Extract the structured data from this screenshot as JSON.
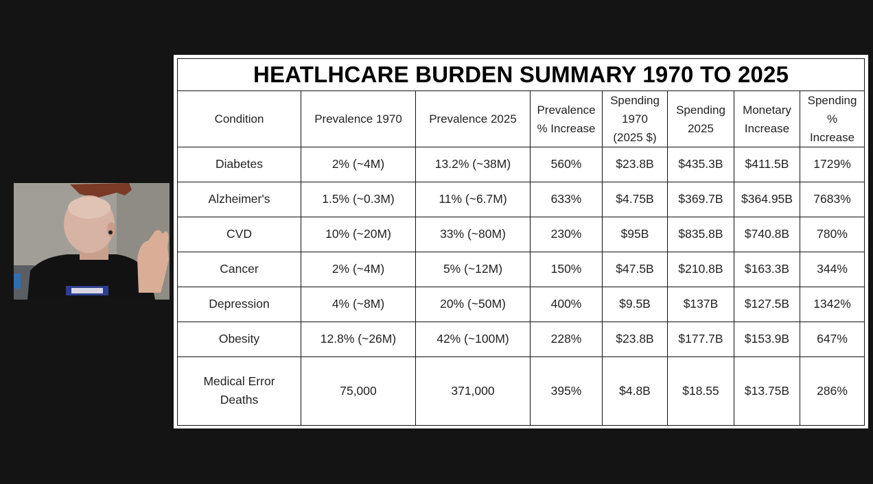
{
  "table": {
    "title": "HEATLHCARE BURDEN SUMMARY 1970 TO 2025",
    "headers": [
      [
        "Condition"
      ],
      [
        "Prevalence 1970"
      ],
      [
        "Prevalence 2025"
      ],
      [
        "Prevalence",
        "% Increase"
      ],
      [
        "Spending",
        "1970",
        "(2025 $)"
      ],
      [
        "Spending",
        "2025"
      ],
      [
        "Monetary",
        "Increase"
      ],
      [
        "Spending",
        "%",
        "Increase"
      ]
    ],
    "rows": [
      [
        [
          "Diabetes"
        ],
        [
          "2% (~4M)"
        ],
        [
          "13.2% (~38M)"
        ],
        [
          "560%"
        ],
        [
          "$23.8B"
        ],
        [
          "$435.3B"
        ],
        [
          "$411.5B"
        ],
        [
          "1729%"
        ]
      ],
      [
        [
          "Alzheimer's"
        ],
        [
          "1.5% (~0.3M)"
        ],
        [
          "11% (~6.7M)"
        ],
        [
          "633%"
        ],
        [
          "$4.75B"
        ],
        [
          "$369.7B"
        ],
        [
          "$364.95B"
        ],
        [
          "7683%"
        ]
      ],
      [
        [
          "CVD"
        ],
        [
          "10% (~20M)"
        ],
        [
          "33% (~80M)"
        ],
        [
          "230%"
        ],
        [
          "$95B"
        ],
        [
          "$835.8B"
        ],
        [
          "$740.8B"
        ],
        [
          "780%"
        ]
      ],
      [
        [
          "Cancer"
        ],
        [
          "2% (~4M)"
        ],
        [
          "5% (~12M)"
        ],
        [
          "150%"
        ],
        [
          "$47.5B"
        ],
        [
          "$210.8B"
        ],
        [
          "$163.3B"
        ],
        [
          "344%"
        ]
      ],
      [
        [
          "Depression"
        ],
        [
          "4% (~8M)"
        ],
        [
          "20% (~50M)"
        ],
        [
          "400%"
        ],
        [
          "$9.5B"
        ],
        [
          "$137B"
        ],
        [
          "$127.5B"
        ],
        [
          "1342%"
        ]
      ],
      [
        [
          "Obesity"
        ],
        [
          "12.8% (~26M)"
        ],
        [
          "42% (~100M)"
        ],
        [
          "228%"
        ],
        [
          "$23.8B"
        ],
        [
          "$177.7B"
        ],
        [
          "$153.9B"
        ],
        [
          "647%"
        ]
      ],
      [
        [
          "Medical Error",
          "Deaths"
        ],
        [
          "75,000"
        ],
        [
          "371,000"
        ],
        [
          "395%"
        ],
        [
          "$4.8B"
        ],
        [
          "$18.55"
        ],
        [
          "$13.75B"
        ],
        [
          "286%"
        ]
      ]
    ]
  },
  "colors": {
    "background": "#141414",
    "slide": "#ffffff",
    "border": "#111111"
  }
}
